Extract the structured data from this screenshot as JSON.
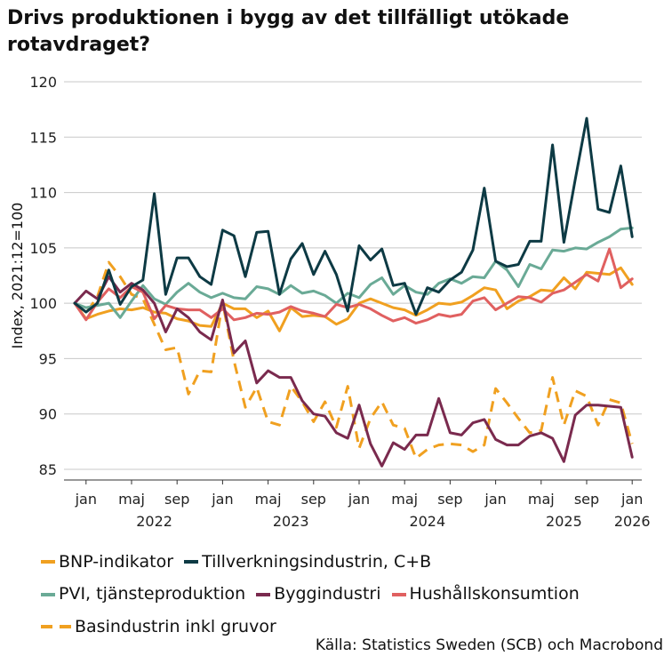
{
  "title": "Drivs produktionen i bygg av det tillfälligt utökade rotavdraget?",
  "source": "Källa: Statistics Sweden (SCB) och Macrobond",
  "chart_data": {
    "type": "line",
    "ylabel": "Index, 2021:12=100",
    "ylim": [
      85,
      120
    ],
    "yticks": [
      85,
      90,
      95,
      100,
      105,
      110,
      115,
      120
    ],
    "x_start": "2021-12",
    "x_labels": [
      {
        "month": 1,
        "label": "jan"
      },
      {
        "month": 5,
        "label": "maj"
      },
      {
        "month": 9,
        "label": "sep"
      },
      {
        "month": 13,
        "label": "jan"
      },
      {
        "month": 17,
        "label": "maj"
      },
      {
        "month": 21,
        "label": "sep"
      },
      {
        "month": 25,
        "label": "jan"
      },
      {
        "month": 29,
        "label": "maj"
      },
      {
        "month": 33,
        "label": "sep"
      },
      {
        "month": 37,
        "label": "jan"
      },
      {
        "month": 41,
        "label": "maj"
      },
      {
        "month": 45,
        "label": "sep"
      },
      {
        "month": 49,
        "label": "jan"
      }
    ],
    "year_labels": [
      {
        "month": 7,
        "label": "2022"
      },
      {
        "month": 19,
        "label": "2023"
      },
      {
        "month": 31,
        "label": "2024"
      },
      {
        "month": 43,
        "label": "2025"
      },
      {
        "month": 49,
        "label": "2026"
      }
    ],
    "grid": "horizontal",
    "legend_position": "bottom",
    "series": [
      {
        "name": "BNP-indikator",
        "color": "#f0a020",
        "dash": false,
        "values": [
          100,
          98.6,
          99.0,
          99.3,
          99.5,
          99.4,
          99.6,
          99.2,
          99.1,
          98.6,
          98.4,
          98.0,
          97.9,
          100.0,
          99.5,
          99.5,
          98.7,
          99.3,
          97.5,
          99.6,
          98.8,
          98.9,
          98.8,
          98.1,
          98.6,
          100.0,
          100.4,
          100.0,
          99.6,
          99.4,
          98.9,
          99.4,
          100.0,
          99.9,
          100.1,
          100.7,
          101.4,
          101.2,
          99.5,
          100.2,
          100.6,
          101.2,
          101.1,
          102.3,
          101.3,
          102.8,
          102.7,
          102.6,
          103.2,
          101.7
        ]
      },
      {
        "name": "Tillverkningsindustrin, C+B",
        "color": "#0d3a44",
        "dash": false,
        "values": [
          100,
          99.2,
          100.0,
          103.0,
          99.9,
          101.5,
          102.1,
          109.9,
          100.8,
          104.1,
          104.1,
          102.4,
          101.7,
          106.6,
          106.1,
          102.4,
          106.4,
          106.5,
          100.8,
          104.0,
          105.4,
          102.6,
          104.7,
          102.6,
          99.3,
          105.2,
          103.9,
          104.9,
          101.6,
          101.8,
          99.0,
          101.4,
          101.0,
          102.1,
          102.8,
          104.8,
          110.4,
          103.8,
          103.3,
          103.5,
          105.6,
          105.6,
          114.3,
          105.5,
          111.2,
          116.7,
          108.5,
          108.2,
          112.4,
          106.0
        ]
      },
      {
        "name": "PVI, tjänsteproduktion",
        "color": "#6aaa96",
        "dash": false,
        "values": [
          100,
          99.6,
          99.8,
          100.0,
          98.7,
          100.2,
          101.6,
          100.4,
          99.9,
          101.0,
          101.8,
          101.0,
          100.5,
          100.9,
          100.5,
          100.4,
          101.5,
          101.3,
          100.8,
          101.6,
          100.9,
          101.1,
          100.7,
          100.0,
          100.9,
          100.5,
          101.7,
          102.3,
          100.8,
          101.6,
          101.0,
          100.8,
          101.8,
          102.2,
          101.8,
          102.4,
          102.3,
          103.8,
          103.0,
          101.5,
          103.5,
          103.1,
          104.8,
          104.7,
          105.0,
          104.9,
          105.5,
          106.0,
          106.7,
          106.8
        ]
      },
      {
        "name": "Byggindustri",
        "color": "#7a2a4e",
        "dash": false,
        "values": [
          100,
          101.1,
          100.4,
          102.4,
          101.0,
          101.8,
          101.2,
          100.0,
          97.4,
          99.5,
          98.7,
          97.4,
          96.7,
          100.3,
          95.5,
          96.6,
          92.8,
          93.9,
          93.3,
          93.3,
          91.2,
          90.0,
          89.8,
          88.3,
          87.8,
          90.8,
          87.3,
          85.3,
          87.4,
          86.8,
          88.1,
          88.1,
          91.4,
          88.3,
          88.1,
          89.2,
          89.5,
          87.7,
          87.2,
          87.2,
          88.0,
          88.3,
          87.8,
          85.7,
          89.9,
          90.8,
          90.8,
          90.7,
          90.6,
          86.1
        ]
      },
      {
        "name": "Hushållskonsumtion",
        "color": "#e06060",
        "dash": false,
        "values": [
          100,
          98.5,
          100.1,
          101.3,
          100.5,
          101.5,
          101.0,
          98.6,
          99.8,
          99.5,
          99.4,
          99.4,
          98.7,
          99.5,
          98.5,
          98.7,
          99.1,
          99.0,
          99.2,
          99.7,
          99.3,
          99.1,
          98.8,
          99.9,
          99.6,
          99.9,
          99.5,
          98.9,
          98.4,
          98.7,
          98.2,
          98.5,
          99.0,
          98.8,
          99.0,
          100.2,
          100.5,
          99.4,
          100.0,
          100.6,
          100.5,
          100.1,
          100.9,
          101.2,
          101.9,
          102.6,
          102.0,
          104.9,
          101.4,
          102.2
        ]
      },
      {
        "name": "Basindustrin inkl gruvor",
        "color": "#f0a020",
        "dash": true,
        "values": [
          100,
          99.1,
          100.6,
          103.7,
          102.4,
          100.8,
          100.4,
          98.1,
          95.8,
          96.0,
          91.8,
          93.9,
          93.8,
          100.1,
          94.8,
          90.6,
          92.4,
          89.3,
          89.0,
          92.5,
          91.1,
          89.3,
          91.1,
          88.8,
          92.5,
          86.9,
          89.6,
          91.1,
          89.0,
          88.7,
          86.0,
          86.8,
          87.2,
          87.3,
          87.2,
          86.6,
          87.2,
          92.3,
          91.0,
          89.6,
          88.3,
          88.5,
          93.3,
          89.0,
          92.1,
          91.6,
          89.0,
          91.3,
          91.0,
          87.3
        ]
      }
    ]
  }
}
